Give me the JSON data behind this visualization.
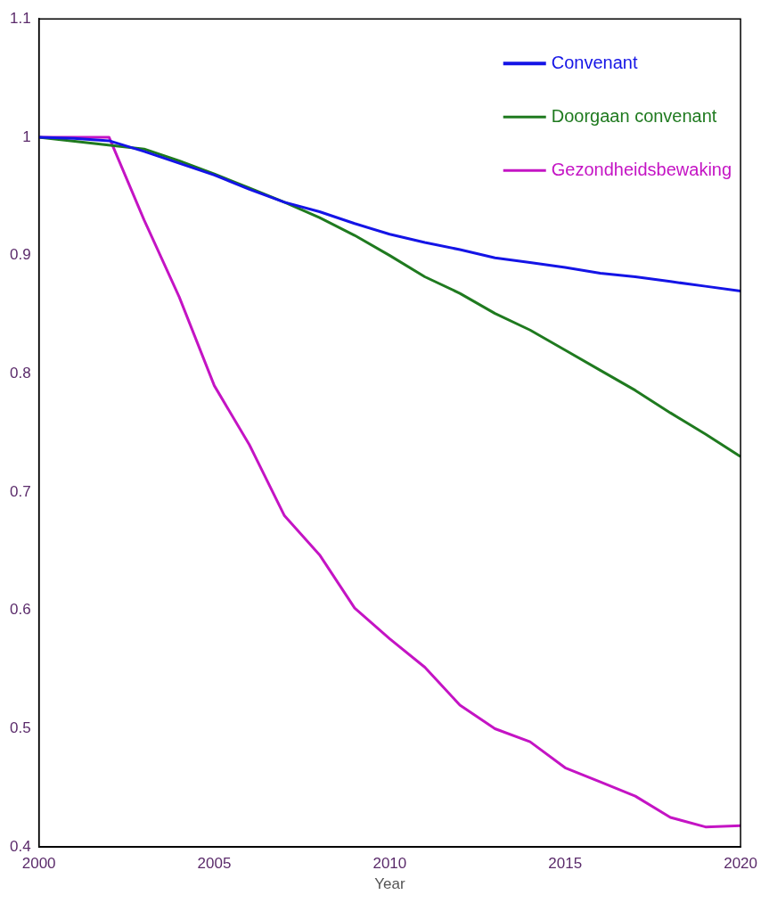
{
  "chart_data": {
    "type": "line",
    "xlabel": "Year",
    "xlim": [
      2000,
      2020
    ],
    "xticks": [
      2000,
      2005,
      2010,
      2015,
      2020
    ],
    "ylim": [
      0.4,
      1.1
    ],
    "yticks": [
      0.4,
      0.5,
      0.6,
      0.7,
      0.8,
      0.9,
      1,
      1.1
    ],
    "grid": false,
    "legend": "top right",
    "marker": "none",
    "line_style": "solid",
    "x": [
      2000,
      2001,
      2002,
      2003,
      2004,
      2005,
      2006,
      2007,
      2008,
      2009,
      2010,
      2011,
      2012,
      2013,
      2014,
      2015,
      2016,
      2017,
      2018,
      2019,
      2020
    ],
    "series": [
      {
        "name": "Convenant",
        "color": "#1414e6",
        "values": [
          1.0,
          0.999,
          0.997,
          0.988,
          0.978,
          0.968,
          0.956,
          0.945,
          0.937,
          0.927,
          0.918,
          0.911,
          0.905,
          0.898,
          0.894,
          0.89,
          0.885,
          0.882,
          0.878,
          0.874,
          0.87
        ]
      },
      {
        "name": "Doorgaan convenant",
        "color": "#1f7a1f",
        "values": [
          1.0,
          null,
          null,
          0.99,
          0.98,
          0.969,
          0.957,
          0.945,
          0.932,
          0.917,
          0.9,
          0.882,
          0.868,
          0.851,
          0.837,
          0.82,
          0.803,
          0.786,
          0.767,
          0.749,
          0.73
        ]
      },
      {
        "name": "Gezondheidsbewaking",
        "color": "#c414c4",
        "values": [
          1.0,
          1.0,
          1.0,
          0.93,
          0.865,
          0.79,
          0.74,
          0.68,
          0.647,
          0.602,
          0.576,
          0.552,
          0.52,
          0.5,
          0.489,
          0.467,
          0.455,
          0.443,
          0.425,
          0.417,
          0.418
        ]
      }
    ]
  }
}
